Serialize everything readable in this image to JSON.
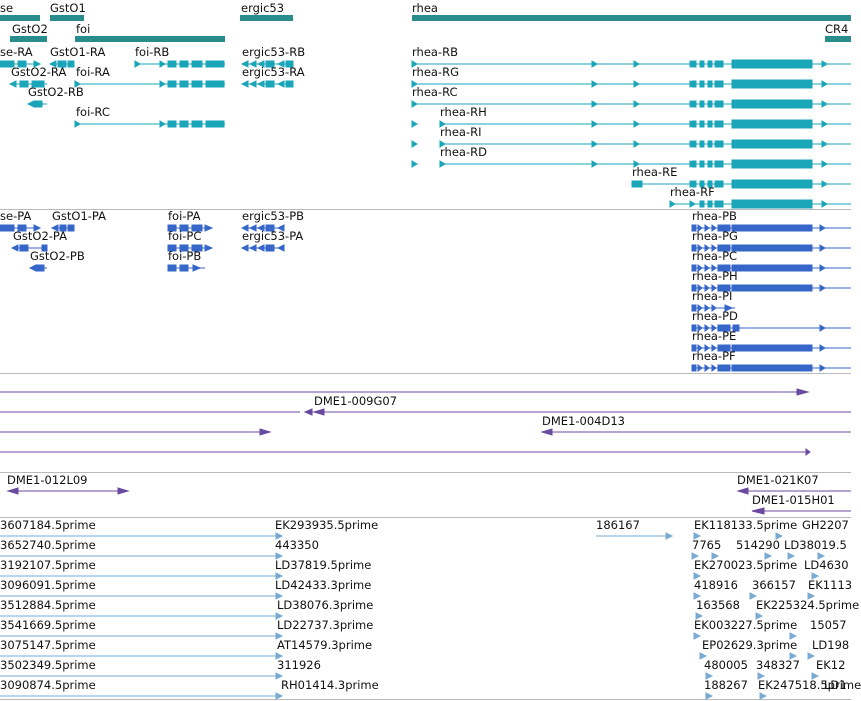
{
  "colors": {
    "gene": "#2a8c8c",
    "mrna": "#1aa6b8",
    "protein": "#3566c8",
    "clone": "#6a4a9e",
    "est": "#7aaad2",
    "separator": "#b9b9b9",
    "text": "#111111"
  },
  "tracks": {
    "genes": {
      "labels": [
        "se",
        "GstO1",
        "ergic53",
        "rhea",
        "GstO2",
        "foi",
        "CR4"
      ]
    },
    "transcripts": {
      "labels": [
        "se-RA",
        "GstO1-RA",
        "foi-RB",
        "ergic53-RB",
        "rhea-RB",
        "GstO2-RA",
        "foi-RA",
        "ergic53-RA",
        "rhea-RG",
        "GstO2-RB",
        "rhea-RC",
        "foi-RC",
        "rhea-RH",
        "rhea-RI",
        "rhea-RD",
        "rhea-RE",
        "rhea-RF"
      ]
    },
    "proteins": {
      "labels": [
        "se-PA",
        "GstO1-PA",
        "foi-PA",
        "ergic53-PB",
        "rhea-PB",
        "GstO2-PA",
        "foi-PC",
        "ergic53-PA",
        "rhea-PG",
        "GstO2-PB",
        "foi-PB",
        "rhea-PC",
        "rhea-PH",
        "rhea-PI",
        "rhea-PD",
        "rhea-PE",
        "rhea-PF"
      ]
    },
    "clones_upper": {
      "labels": [
        "DME1-009G07",
        "DME1-004D13"
      ]
    },
    "clones_lower": {
      "labels": [
        "DME1-012L09",
        "DME1-021K07",
        "DME1-015H01"
      ]
    },
    "ests": {
      "labels": [
        "3607184.5prime",
        "EK293935.5prime",
        "186167",
        "EK118133.5prime",
        "GH2207",
        "3652740.5prime",
        "443350",
        "7765",
        "514290",
        "LD38019.5",
        "3192107.5prime",
        "LD37819.5prime",
        "EK270023.5prime",
        "LD4630",
        "3096091.5prime",
        "LD42433.3prime",
        "418916",
        "366157",
        "EK1113",
        "3512884.5prime",
        "LD38076.3prime",
        "163568",
        "EK225324.5prime",
        "3541669.5prime",
        "LD22737.3prime",
        "EK003227.5prime",
        "15057",
        "3075147.5prime",
        "AT14579.3prime",
        "EP02629.3prime",
        "LD198",
        "3502349.5prime",
        "311926",
        "480005",
        "348327",
        "EK12",
        "3090874.5prime",
        "RH01414.3prime",
        "188267",
        "EK247518.5prime",
        "LD1"
      ]
    }
  }
}
